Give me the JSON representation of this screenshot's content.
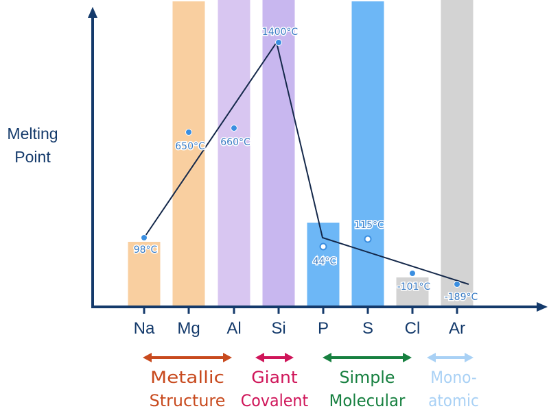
{
  "chart_data": {
    "type": "bar",
    "title": "",
    "xlabel": "",
    "ylabel": "Melting Point",
    "categories": [
      "Na",
      "Mg",
      "Al",
      "Si",
      "P",
      "S",
      "Cl",
      "Ar"
    ],
    "values": [
      98,
      650,
      660,
      1400,
      44,
      115,
      -101,
      -189
    ],
    "value_labels": [
      "98°C",
      "650°C",
      "660°C",
      "1400°C",
      "44°C",
      "115°C",
      "-101°C",
      "-189°C"
    ],
    "line_points": [
      "Na",
      "Si",
      "P",
      "Ar"
    ],
    "bar_colors": [
      "#f9cfa0",
      "#f9cfa0",
      "#d8c6f1",
      "#c8b7ef",
      "#6db7f6",
      "#6db7f6",
      "#d3d3d3",
      "#d3d3d3"
    ],
    "grid": false,
    "groups": [
      {
        "line1": "Metallic",
        "line2": "Structure",
        "color": "#c84a1e",
        "members": [
          "Na",
          "Mg",
          "Al"
        ]
      },
      {
        "line1": "Giant",
        "line2": "Covalent",
        "color": "#cf1559",
        "members": [
          "Si"
        ]
      },
      {
        "line1": "Simple",
        "line2": "Molecular",
        "color": "#178040",
        "members": [
          "P",
          "S",
          "Cl"
        ]
      },
      {
        "line1": "Mono-",
        "line2": "atomic",
        "color": "#a9d1f5",
        "members": [
          "Ar"
        ]
      }
    ],
    "colors": {
      "axis": "#143a6b",
      "point": "#3a8ee0",
      "label": "#3a7cc4",
      "line": "#14284a"
    }
  }
}
